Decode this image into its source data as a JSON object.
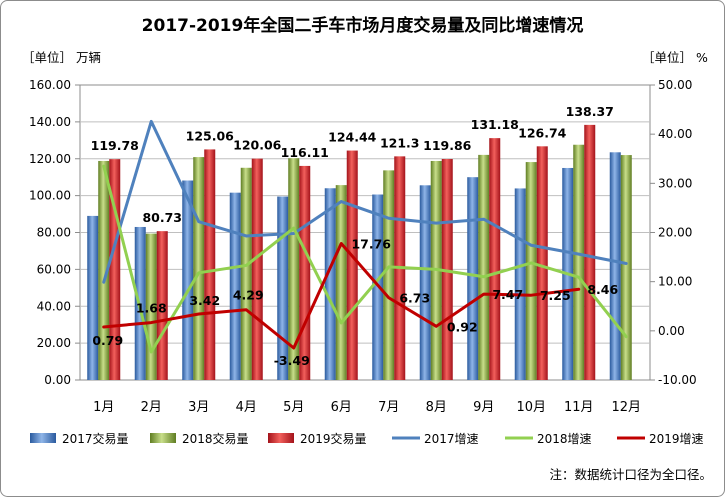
{
  "chart_data": {
    "type": "bar",
    "title": "2017-2019年全国二手车市场月度交易量及同比增速情况",
    "ylabel": "［单位］ 万辆",
    "y2label": "［单位］ %",
    "categories": [
      "1月",
      "2月",
      "3月",
      "4月",
      "5月",
      "6月",
      "7月",
      "8月",
      "9月",
      "10月",
      "11月",
      "12月"
    ],
    "y_axis": {
      "min": 0,
      "max": 160,
      "step": 20,
      "tick_labels": [
        "0.00",
        "20.00",
        "40.00",
        "60.00",
        "80.00",
        "100.00",
        "120.00",
        "140.00",
        "160.00"
      ]
    },
    "y2_axis": {
      "min": -10,
      "max": 50,
      "step": 10,
      "tick_labels": [
        "-10.00",
        "0.00",
        "10.00",
        "20.00",
        "30.00",
        "40.00",
        "50.00"
      ]
    },
    "grid": true,
    "legend_position": "bottom",
    "series": [
      {
        "name": "2017交易量",
        "type": "bar",
        "axis": "left",
        "color": "#2a5a9e",
        "color_light": "#8fb5e8",
        "values": [
          89.0,
          83.0,
          108.2,
          101.6,
          99.5,
          104.0,
          100.6,
          105.6,
          110.0,
          103.9,
          115.0,
          123.5
        ]
      },
      {
        "name": "2018交易量",
        "type": "bar",
        "axis": "left",
        "color": "#5f7d22",
        "color_light": "#c8de8a",
        "values": [
          118.8,
          79.4,
          120.9,
          115.1,
          120.3,
          105.7,
          113.7,
          118.8,
          122.1,
          118.2,
          127.6,
          122.0
        ]
      },
      {
        "name": "2019交易量",
        "type": "bar",
        "axis": "left",
        "color": "#a3121a",
        "color_light": "#f2605c",
        "label_color": "#1f33d6",
        "values": [
          119.78,
          80.73,
          125.06,
          120.06,
          116.11,
          124.44,
          121.3,
          119.86,
          131.18,
          126.74,
          138.37,
          null
        ],
        "data_labels": [
          "119.78",
          "80.73",
          "125.06",
          "120.06",
          "116.11",
          "124.44",
          "121.3",
          "119.86",
          "131.18",
          "126.74",
          "138.37"
        ]
      },
      {
        "name": "2017增速",
        "type": "line",
        "axis": "right",
        "color": "#4f81bd",
        "values": [
          9.9,
          42.6,
          22.2,
          19.3,
          19.8,
          26.3,
          22.9,
          21.9,
          22.7,
          17.4,
          15.6,
          13.7
        ]
      },
      {
        "name": "2018增速",
        "type": "line",
        "axis": "right",
        "color": "#92d050",
        "values": [
          33.5,
          -4.3,
          11.8,
          13.3,
          20.9,
          1.6,
          13.0,
          12.5,
          11.0,
          13.8,
          10.9,
          -1.2
        ]
      },
      {
        "name": "2019增速",
        "type": "line",
        "axis": "right",
        "color": "#c00000",
        "label_color": "#000000",
        "values": [
          0.79,
          1.68,
          3.42,
          4.29,
          -3.49,
          17.76,
          6.73,
          0.92,
          7.47,
          7.25,
          8.46,
          null
        ],
        "data_labels": [
          "0.79",
          "1.68",
          "3.42",
          "4.29",
          "-3.49",
          "17.76",
          "6.73",
          "0.92",
          "7.47",
          "7.25",
          "8.46"
        ]
      }
    ]
  },
  "note": "注：数据统计口径为全口径。"
}
